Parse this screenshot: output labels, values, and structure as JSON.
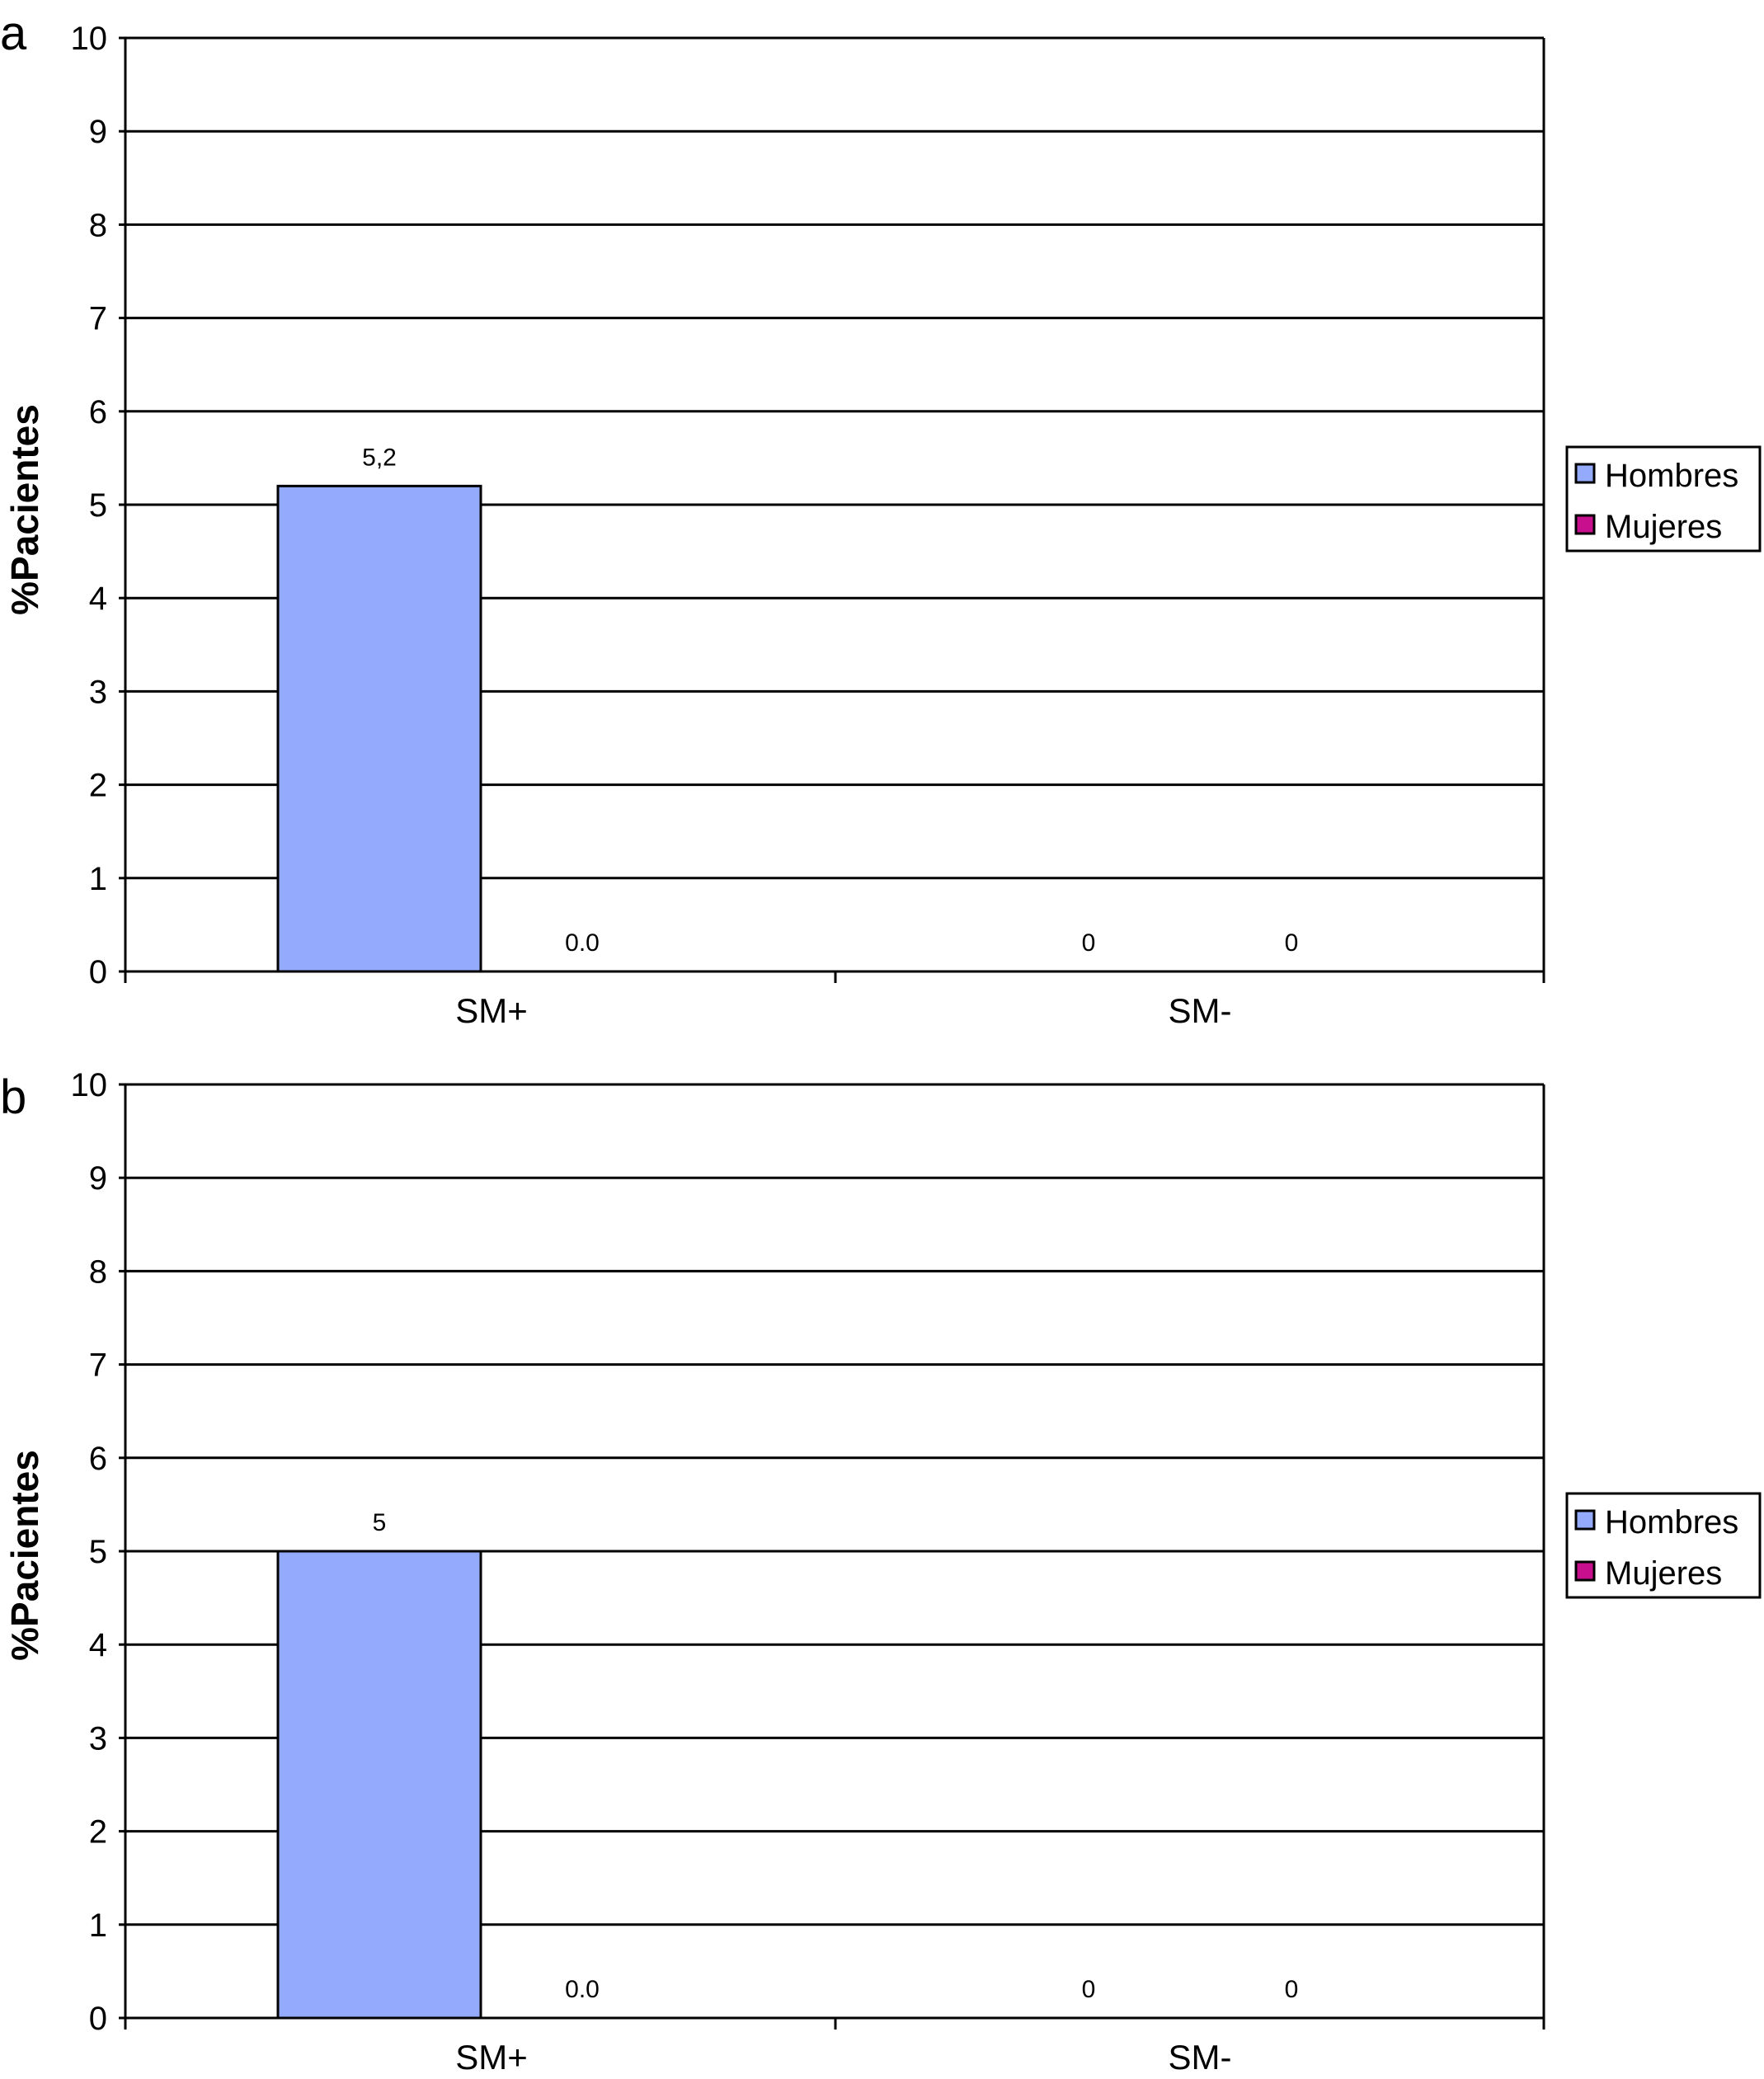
{
  "colors": {
    "hombres": "#94aafd",
    "mujeres": "#c8108f",
    "axis": "#000000",
    "background": "#ffffff"
  },
  "chart_data": [
    {
      "type": "bar",
      "panel_label": "a",
      "categories": [
        "SM+",
        "SM-"
      ],
      "series": [
        {
          "name": "Hombres",
          "values": [
            5.2,
            0
          ]
        },
        {
          "name": "Mujeres",
          "values": [
            0,
            0
          ]
        }
      ],
      "data_labels": [
        [
          "5,2",
          "0"
        ],
        [
          "0.0",
          "0"
        ]
      ],
      "ylabel": "%Pacientes",
      "xlabel": "",
      "ylim": [
        0,
        10
      ],
      "yticks": [
        "0",
        "1",
        "2",
        "3",
        "4",
        "5",
        "6",
        "7",
        "8",
        "9",
        "10"
      ],
      "grid": true,
      "legend": {
        "entries": [
          "Hombres",
          "Mujeres"
        ],
        "placement": "right"
      }
    },
    {
      "type": "bar",
      "panel_label": "b",
      "categories": [
        "SM+",
        "SM-"
      ],
      "series": [
        {
          "name": "Hombres",
          "values": [
            5,
            0
          ]
        },
        {
          "name": "Mujeres",
          "values": [
            0,
            0
          ]
        }
      ],
      "data_labels": [
        [
          "5",
          "0"
        ],
        [
          "0.0",
          "0"
        ]
      ],
      "ylabel": "%Pacientes",
      "xlabel": "",
      "ylim": [
        0,
        10
      ],
      "yticks": [
        "0",
        "1",
        "2",
        "3",
        "4",
        "5",
        "6",
        "7",
        "8",
        "9",
        "10"
      ],
      "grid": true,
      "legend": {
        "entries": [
          "Hombres",
          "Mujeres"
        ],
        "placement": "right"
      }
    }
  ]
}
